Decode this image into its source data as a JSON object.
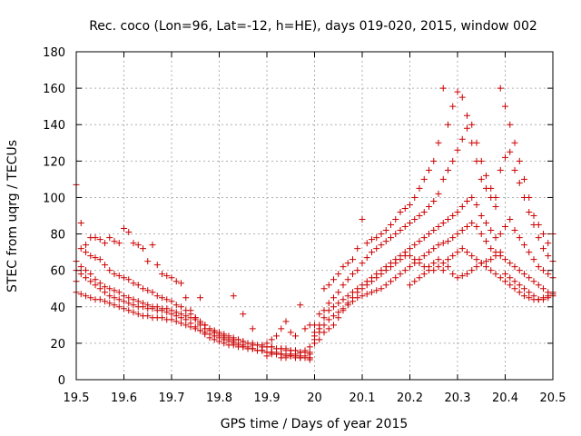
{
  "chart_data": {
    "type": "scatter",
    "title": "Rec. coco (Lon=96, Lat=-12, h=HE), days 019-020, 2015, window 002",
    "xlabel": "GPS time / Days of year 2015",
    "ylabel": "STEC from uqrg / TECUs",
    "xlim": [
      19.5,
      20.5
    ],
    "ylim": [
      0,
      180
    ],
    "xticks": [
      "19.5",
      "19.6",
      "19.7",
      "19.8",
      "19.9",
      "20",
      "20.1",
      "20.2",
      "20.3",
      "20.4",
      "20.5"
    ],
    "yticks": [
      "0",
      "20",
      "40",
      "60",
      "80",
      "100",
      "120",
      "140",
      "160",
      "180"
    ],
    "grid": true,
    "marker": "+",
    "color": "#cc0000",
    "series": [
      {
        "x": [
          19.5,
          19.51,
          19.52,
          19.53,
          19.54,
          19.55,
          19.56,
          19.57,
          19.58,
          19.59,
          19.6,
          19.61,
          19.62,
          19.63,
          19.64,
          19.65,
          19.66,
          19.67,
          19.68,
          19.69,
          19.7,
          19.71,
          19.72,
          19.73,
          19.74,
          19.75,
          19.76,
          19.77,
          19.78,
          19.79,
          19.8,
          19.81,
          19.82,
          19.83,
          19.84,
          19.85,
          19.86,
          19.87,
          19.88,
          19.89,
          19.9,
          19.91,
          19.92,
          19.93,
          19.94,
          19.95,
          19.96,
          19.97,
          19.98,
          19.99
        ],
        "y": [
          107,
          86,
          74,
          78,
          78,
          77,
          75,
          78,
          76,
          75,
          83,
          81,
          75,
          74,
          72,
          65,
          74,
          63,
          58,
          57,
          56,
          54,
          53,
          45,
          38,
          34,
          30,
          28,
          27,
          26,
          25,
          24,
          23,
          22,
          22,
          21,
          20,
          19,
          19,
          18,
          18,
          18,
          17,
          17,
          17,
          16,
          16,
          15,
          15,
          14
        ]
      },
      {
        "x": [
          19.5,
          19.51,
          19.52,
          19.53,
          19.54,
          19.55,
          19.56,
          19.57,
          19.58,
          19.59,
          19.6,
          19.61,
          19.62,
          19.63,
          19.64,
          19.65,
          19.66,
          19.67,
          19.68,
          19.69,
          19.7,
          19.71,
          19.72,
          19.73,
          19.74,
          19.75,
          19.76,
          19.77,
          19.78,
          19.79,
          19.8,
          19.81,
          19.82,
          19.83,
          19.84,
          19.85,
          19.86,
          19.87,
          19.88,
          19.89,
          19.9,
          19.91,
          19.92,
          19.93,
          19.94,
          19.95,
          19.96,
          19.97,
          19.98,
          19.99
        ],
        "y": [
          65,
          72,
          70,
          68,
          67,
          66,
          63,
          60,
          58,
          57,
          56,
          55,
          53,
          52,
          50,
          49,
          48,
          46,
          45,
          44,
          43,
          41,
          40,
          38,
          36,
          34,
          32,
          30,
          28,
          26,
          24,
          23,
          22,
          21,
          20,
          19,
          18,
          17,
          16,
          16,
          15,
          15,
          14,
          14,
          13,
          13,
          12,
          12,
          12,
          11
        ]
      },
      {
        "x": [
          19.5,
          19.51,
          19.52,
          19.53,
          19.54,
          19.55,
          19.56,
          19.57,
          19.58,
          19.59,
          19.6,
          19.61,
          19.62,
          19.63,
          19.64,
          19.65,
          19.66,
          19.67,
          19.68,
          19.69,
          19.7,
          19.71,
          19.72,
          19.73,
          19.74,
          19.75,
          19.76,
          19.77,
          19.78,
          19.79,
          19.8,
          19.81,
          19.82,
          19.83,
          19.84,
          19.85,
          19.86,
          19.87,
          19.88,
          19.89,
          19.9,
          19.91,
          19.92,
          19.93,
          19.94,
          19.95,
          19.96,
          19.97,
          19.98,
          19.99
        ],
        "y": [
          60,
          58,
          56,
          54,
          52,
          50,
          48,
          46,
          45,
          44,
          43,
          42,
          41,
          40,
          40,
          39,
          39,
          38,
          38,
          37,
          36,
          35,
          34,
          33,
          31,
          29,
          27,
          25,
          23,
          22,
          21,
          20,
          19,
          19,
          18,
          18,
          17,
          17,
          16,
          16,
          15,
          15,
          15,
          14,
          14,
          14,
          13,
          13,
          13,
          12
        ]
      },
      {
        "x": [
          19.5,
          19.51,
          19.52,
          19.53,
          19.54,
          19.55,
          19.56,
          19.57,
          19.58,
          19.59,
          19.6,
          19.61,
          19.62,
          19.63,
          19.64,
          19.65,
          19.66,
          19.67,
          19.68,
          19.69,
          19.7,
          19.71,
          19.72,
          19.73,
          19.74,
          19.75,
          19.76,
          19.77,
          19.78,
          19.79,
          19.8,
          19.81,
          19.82,
          19.83,
          19.84,
          19.85,
          19.86,
          19.87,
          19.88,
          19.89,
          19.9,
          19.91,
          19.92,
          19.93,
          19.94,
          19.95,
          19.96,
          19.97,
          19.98,
          19.99
        ],
        "y": [
          48,
          47,
          46,
          45,
          44,
          44,
          43,
          42,
          41,
          40,
          39,
          38,
          37,
          36,
          35,
          35,
          34,
          34,
          34,
          33,
          33,
          32,
          31,
          30,
          29,
          28,
          27,
          26,
          25,
          24,
          23,
          22,
          21,
          20,
          19,
          18,
          17,
          17,
          16,
          16,
          15,
          15,
          14,
          14,
          13,
          13,
          13,
          12,
          12,
          12
        ]
      },
      {
        "x": [
          19.5,
          19.51,
          19.52,
          19.53,
          19.54,
          19.55,
          19.56,
          19.57,
          19.58,
          19.59,
          19.6,
          19.61,
          19.62,
          19.63,
          19.64,
          19.65,
          19.66,
          19.67,
          19.68,
          19.69,
          19.7,
          19.71,
          19.72,
          19.73,
          19.74,
          19.75,
          19.76,
          19.77,
          19.78,
          19.79,
          19.8,
          19.81,
          19.82,
          19.83,
          19.84,
          19.85,
          19.86,
          19.87,
          19.88,
          19.89,
          19.9,
          19.91,
          19.92,
          19.93,
          19.94,
          19.95,
          19.96,
          19.97,
          19.98,
          19.99
        ],
        "y": [
          54,
          62,
          60,
          58,
          55,
          53,
          51,
          50,
          49,
          48,
          46,
          45,
          44,
          43,
          42,
          41,
          40,
          40,
          39,
          39,
          38,
          37,
          36,
          35,
          34,
          33,
          31,
          30,
          28,
          27,
          26,
          25,
          24,
          23,
          22,
          21,
          20,
          20,
          19,
          19,
          18,
          18,
          17,
          17,
          16,
          16,
          16,
          15,
          15,
          15
        ]
      },
      {
        "x": [
          19.9,
          19.91,
          19.92,
          19.93,
          19.94,
          19.95,
          19.96,
          19.97,
          19.98,
          19.99
        ],
        "y": [
          20,
          22,
          24,
          28,
          32,
          26,
          24,
          41,
          28,
          30
        ]
      },
      {
        "x": [
          19.9,
          19.91,
          19.92,
          19.93,
          19.94,
          19.95,
          19.96,
          19.97,
          19.98,
          19.99
        ],
        "y": [
          13,
          14,
          14,
          12,
          12,
          13,
          14,
          15,
          16,
          18
        ]
      },
      {
        "x": [
          19.83,
          19.85,
          19.87,
          19.76
        ],
        "y": [
          46,
          36,
          28,
          45
        ]
      },
      {
        "x": [
          20.0,
          20.01,
          20.02,
          20.03,
          20.04,
          20.05,
          20.06,
          20.07,
          20.08,
          20.09,
          20.1,
          20.11,
          20.12,
          20.13,
          20.14,
          20.15,
          20.16,
          20.17,
          20.18,
          20.19,
          20.2,
          20.21,
          20.22,
          20.23,
          20.24,
          20.25,
          20.26,
          20.27,
          20.28,
          20.29,
          20.3,
          20.31,
          20.32,
          20.33,
          20.34,
          20.35,
          20.36,
          20.37,
          20.38,
          20.39,
          20.4,
          20.41,
          20.42,
          20.43,
          20.44,
          20.45,
          20.46,
          20.47,
          20.48,
          20.49,
          20.5
        ],
        "y": [
          30,
          36,
          50,
          52,
          55,
          58,
          62,
          64,
          66,
          72,
          88,
          75,
          77,
          78,
          80,
          82,
          85,
          88,
          92,
          94,
          96,
          100,
          105,
          110,
          115,
          120,
          130,
          160,
          140,
          150,
          158,
          155,
          145,
          130,
          120,
          110,
          105,
          100,
          95,
          160,
          150,
          140,
          130,
          120,
          110,
          100,
          90,
          85,
          80,
          75,
          80
        ]
      },
      {
        "x": [
          20.0,
          20.01,
          20.02,
          20.03,
          20.04,
          20.05,
          20.06,
          20.07,
          20.08,
          20.09,
          20.1,
          20.11,
          20.12,
          20.13,
          20.14,
          20.15,
          20.16,
          20.17,
          20.18,
          20.19,
          20.2,
          20.21,
          20.22,
          20.23,
          20.24,
          20.25,
          20.26,
          20.27,
          20.28,
          20.29,
          20.3,
          20.31,
          20.32,
          20.33,
          20.34,
          20.35,
          20.36,
          20.37,
          20.38,
          20.39,
          20.4,
          20.41,
          20.42,
          20.43,
          20.44,
          20.45,
          20.46,
          20.47,
          20.48,
          20.49,
          20.5
        ],
        "y": [
          26,
          30,
          38,
          42,
          45,
          48,
          52,
          55,
          58,
          60,
          64,
          67,
          70,
          72,
          74,
          76,
          78,
          80,
          82,
          84,
          86,
          88,
          90,
          92,
          95,
          98,
          102,
          110,
          115,
          120,
          126,
          132,
          138,
          140,
          130,
          120,
          112,
          105,
          100,
          115,
          122,
          125,
          115,
          108,
          100,
          92,
          85,
          78,
          72,
          68,
          65
        ]
      },
      {
        "x": [
          20.0,
          20.01,
          20.02,
          20.03,
          20.04,
          20.05,
          20.06,
          20.07,
          20.08,
          20.09,
          20.1,
          20.11,
          20.12,
          20.13,
          20.14,
          20.15,
          20.16,
          20.17,
          20.18,
          20.19,
          20.2,
          20.21,
          20.22,
          20.23,
          20.24,
          20.25,
          20.26,
          20.27,
          20.28,
          20.29,
          20.3,
          20.31,
          20.32,
          20.33,
          20.34,
          20.35,
          20.36,
          20.37,
          20.38,
          20.39,
          20.4,
          20.41,
          20.42,
          20.43,
          20.44,
          20.45,
          20.46,
          20.47,
          20.48,
          20.49,
          20.5
        ],
        "y": [
          24,
          28,
          34,
          38,
          40,
          42,
          44,
          46,
          48,
          50,
          52,
          54,
          56,
          58,
          60,
          62,
          64,
          66,
          68,
          70,
          72,
          74,
          76,
          78,
          80,
          82,
          84,
          86,
          88,
          90,
          92,
          95,
          98,
          100,
          96,
          90,
          86,
          82,
          78,
          80,
          84,
          88,
          82,
          78,
          74,
          70,
          66,
          62,
          60,
          58,
          56
        ]
      },
      {
        "x": [
          20.0,
          20.01,
          20.02,
          20.03,
          20.04,
          20.05,
          20.06,
          20.07,
          20.08,
          20.09,
          20.1,
          20.11,
          20.12,
          20.13,
          20.14,
          20.15,
          20.16,
          20.17,
          20.18,
          20.19,
          20.2,
          20.21,
          20.22,
          20.23,
          20.24,
          20.25,
          20.26,
          20.27,
          20.28,
          20.29,
          20.3,
          20.31,
          20.32,
          20.33,
          20.34,
          20.35,
          20.36,
          20.37,
          20.38,
          20.39,
          20.4,
          20.41,
          20.42,
          20.43,
          20.44,
          20.45,
          20.46,
          20.47,
          20.48,
          20.49,
          20.5
        ],
        "y": [
          22,
          26,
          30,
          33,
          35,
          37,
          39,
          41,
          43,
          45,
          46,
          47,
          48,
          49,
          50,
          52,
          54,
          56,
          58,
          60,
          62,
          64,
          66,
          68,
          70,
          72,
          74,
          75,
          76,
          78,
          80,
          82,
          84,
          86,
          84,
          80,
          76,
          72,
          70,
          68,
          66,
          64,
          62,
          60,
          58,
          56,
          54,
          52,
          50,
          48,
          47
        ]
      },
      {
        "x": [
          20.0,
          20.01,
          20.02,
          20.03,
          20.04,
          20.05,
          20.06,
          20.07,
          20.08,
          20.09,
          20.1,
          20.11,
          20.12,
          20.13,
          20.14,
          20.15,
          20.16,
          20.17,
          20.18,
          20.19,
          20.2,
          20.21,
          20.22,
          20.23,
          20.24,
          20.25,
          20.26,
          20.27,
          20.28,
          20.29,
          20.3,
          20.31,
          20.32,
          20.33,
          20.34,
          20.35,
          20.36,
          20.37,
          20.38,
          20.39,
          20.4,
          20.41,
          20.42,
          20.43,
          20.44,
          20.45,
          20.46,
          20.47,
          20.48,
          20.49,
          20.5
        ],
        "y": [
          20,
          22,
          26,
          28,
          30,
          34,
          38,
          42,
          45,
          48,
          50,
          52,
          54,
          56,
          58,
          60,
          62,
          64,
          66,
          68,
          68,
          66,
          64,
          62,
          60,
          60,
          62,
          64,
          66,
          68,
          70,
          72,
          70,
          68,
          66,
          64,
          62,
          60,
          58,
          56,
          54,
          52,
          50,
          48,
          46,
          45,
          44,
          44,
          45,
          46,
          48
        ]
      },
      {
        "x": [
          20.2,
          20.21,
          20.22,
          20.23,
          20.24,
          20.25,
          20.26,
          20.27,
          20.28,
          20.29,
          20.3,
          20.31,
          20.32,
          20.33,
          20.34,
          20.35,
          20.36,
          20.37,
          20.38,
          20.39,
          20.4,
          20.41,
          20.42,
          20.43,
          20.44,
          20.45,
          20.46,
          20.47,
          20.48,
          20.49,
          20.5
        ],
        "y": [
          52,
          54,
          56,
          58,
          62,
          64,
          66,
          60,
          62,
          58,
          56,
          57,
          58,
          60,
          62,
          64,
          65,
          66,
          68,
          70,
          58,
          56,
          54,
          52,
          50,
          48,
          46,
          44,
          44,
          45,
          46
        ]
      }
    ]
  }
}
